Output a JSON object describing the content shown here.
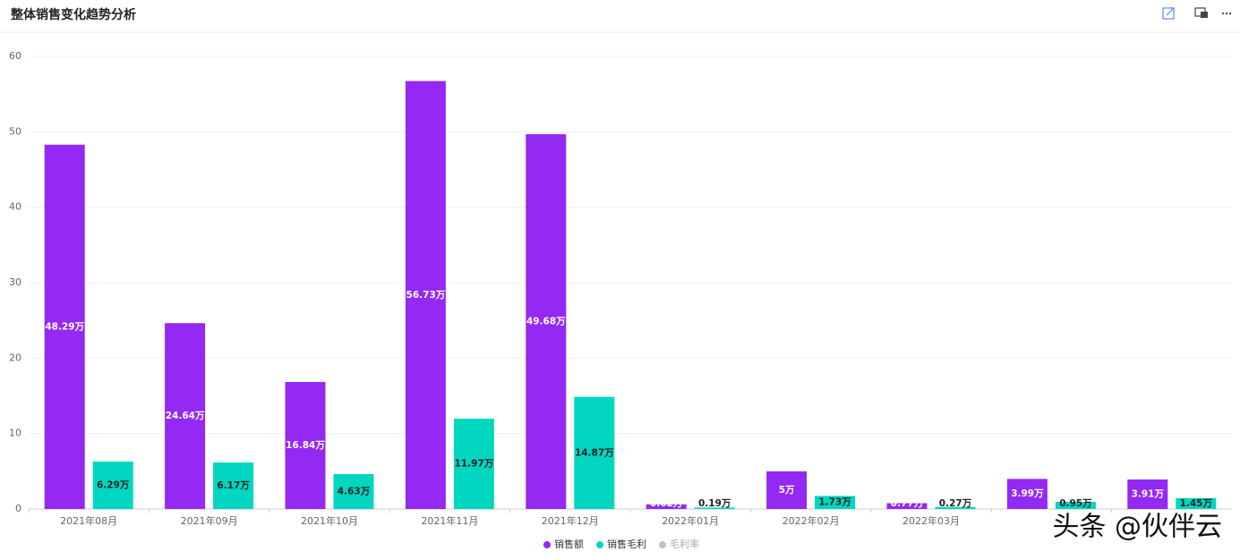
{
  "chart_data": {
    "type": "bar",
    "title": "整体销售变化趋势分析",
    "categories": [
      "2021年08月",
      "2021年09月",
      "2021年10月",
      "2021年11月",
      "2021年12月",
      "2022年01月",
      "2022年02月",
      "2022年03月",
      null,
      null
    ],
    "series": [
      {
        "name": "销售额",
        "color": "#9329f2",
        "values": [
          48.29,
          24.64,
          16.84,
          56.73,
          49.68,
          0.62,
          5,
          0.77,
          3.99,
          3.91
        ],
        "value_labels": [
          "48.29万",
          "24.64万",
          "16.84万",
          "56.73万",
          "49.68万",
          "0.62万",
          "5万",
          "0.77万",
          "3.99万",
          "3.91万"
        ]
      },
      {
        "name": "销售毛利",
        "color": "#00d6c0",
        "values": [
          6.29,
          6.17,
          4.63,
          11.97,
          14.87,
          0.19,
          1.73,
          0.27,
          0.95,
          1.45
        ],
        "value_labels": [
          "6.29万",
          "6.17万",
          "4.63万",
          "11.97万",
          "14.87万",
          "0.19万",
          "1.73万",
          "0.27万",
          "0.95万",
          "1.45万"
        ]
      }
    ],
    "legend_extra": [
      {
        "name": "毛利率",
        "color": "#c4c4c4"
      }
    ],
    "ylim": [
      0,
      60
    ],
    "yticks": [
      0,
      10,
      20,
      30,
      40,
      50,
      60
    ],
    "grid": true,
    "legend": "bottom",
    "watermark": "头条 @伙伴云"
  }
}
